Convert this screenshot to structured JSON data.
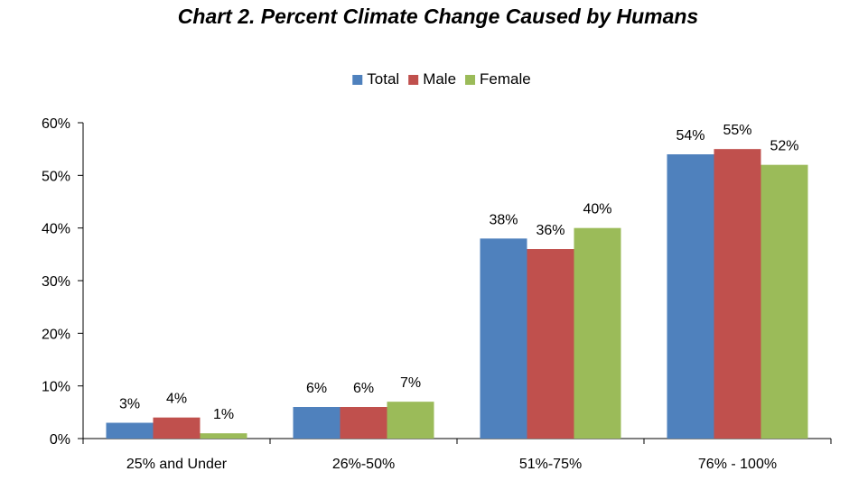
{
  "chart_data": {
    "type": "bar",
    "title": "Chart 2.  Percent Climate Change Caused by Humans",
    "xlabel": "",
    "ylabel": "",
    "categories": [
      "25% and Under",
      "26%-50%",
      "51%-75%",
      "76% - 100%"
    ],
    "series": [
      {
        "name": "Total",
        "color": "#4F81BD",
        "values": [
          3,
          6,
          38,
          54
        ],
        "labels": [
          "3%",
          "6%",
          "38%",
          "54%"
        ]
      },
      {
        "name": "Male",
        "color": "#C0504D",
        "values": [
          4,
          6,
          36,
          55
        ],
        "labels": [
          "4%",
          "6%",
          "36%",
          "55%"
        ]
      },
      {
        "name": "Female",
        "color": "#9BBB59",
        "values": [
          1,
          7,
          40,
          52
        ],
        "labels": [
          "1%",
          "7%",
          "40%",
          "52%"
        ]
      }
    ],
    "ylim": [
      0,
      60
    ],
    "yticks": [
      0,
      10,
      20,
      30,
      40,
      50,
      60
    ],
    "ytick_labels": [
      "0%",
      "10%",
      "20%",
      "30%",
      "40%",
      "50%",
      "60%"
    ],
    "grid": false,
    "legend_position": "top-center"
  }
}
